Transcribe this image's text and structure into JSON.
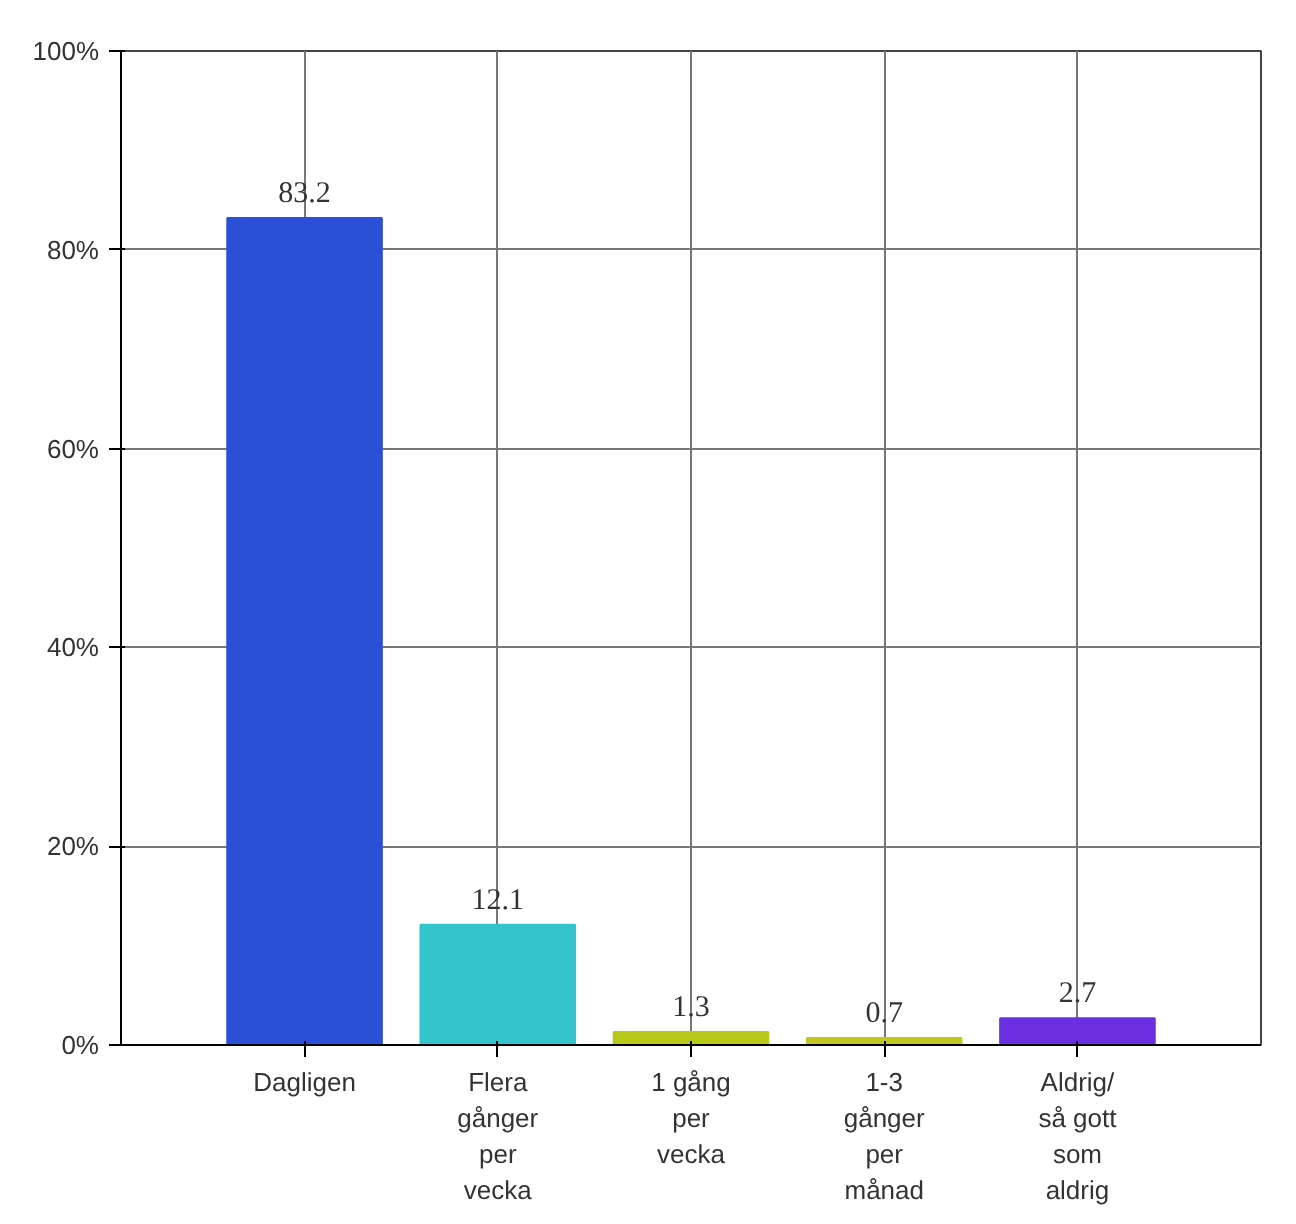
{
  "chart_data": {
    "type": "bar",
    "categories": [
      "Dagligen",
      "Flera gånger per vecka",
      "1 gång per vecka",
      "1-3 gånger per månad",
      "Aldrig/ så gott som aldrig"
    ],
    "values": [
      83.2,
      12.1,
      1.3,
      0.7,
      2.7
    ],
    "colors": [
      "#2b4fd6",
      "#33c4cc",
      "#b8c818",
      "#c0c820",
      "#6a30e0"
    ],
    "ylim": [
      0,
      100
    ],
    "yticks": [
      {
        "value": 0,
        "label": "0%"
      },
      {
        "value": 20,
        "label": "20%"
      },
      {
        "value": 40,
        "label": "40%"
      },
      {
        "value": 60,
        "label": "60%"
      },
      {
        "value": 80,
        "label": "80%"
      },
      {
        "value": 100,
        "label": "100%"
      }
    ],
    "grid": true,
    "data_labels": true
  }
}
